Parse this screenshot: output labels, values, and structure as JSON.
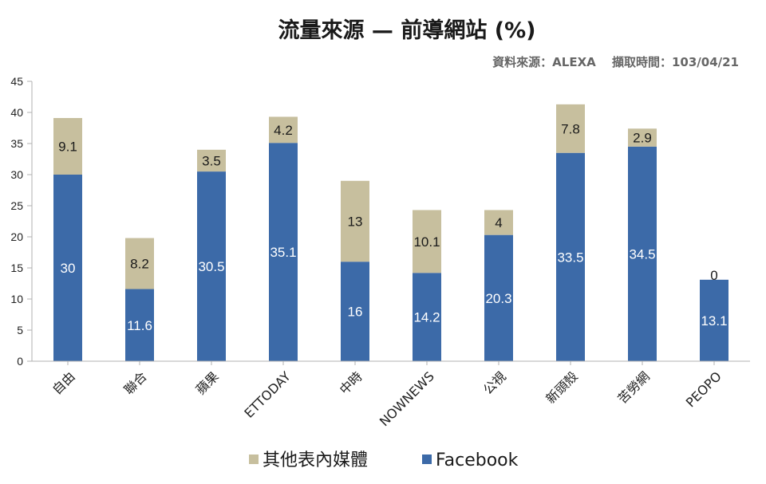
{
  "chart_data": {
    "type": "bar",
    "stacked": true,
    "title": "流量來源 — 前導網站 (%)",
    "subtitle": "資料來源：ALEXA　 擷取時間：103/04/21",
    "categories": [
      "自由",
      "聯合",
      "蘋果",
      "ETTODAY",
      "中時",
      "NOWNEWS",
      "公視",
      "新頭殼",
      "苦勞網",
      "PEOPO"
    ],
    "series": [
      {
        "name": "Facebook",
        "color": "#3c6aa8",
        "label_color": "#ffffff",
        "values": [
          30,
          11.6,
          30.5,
          35.1,
          16,
          14.2,
          20.3,
          33.5,
          34.5,
          13.1
        ]
      },
      {
        "name": "其他表內媒體",
        "color": "#c7bf9e",
        "label_color": "#1a1a1a",
        "values": [
          9.1,
          8.2,
          3.5,
          4.2,
          13,
          10.1,
          4,
          7.8,
          2.9,
          0
        ]
      }
    ],
    "y_ticks": [
      0,
      5,
      10,
      15,
      20,
      25,
      30,
      35,
      40,
      45
    ],
    "ylim": [
      0,
      45
    ],
    "xlabel": "",
    "ylabel": "",
    "grid": false,
    "legend_position": "bottom"
  }
}
